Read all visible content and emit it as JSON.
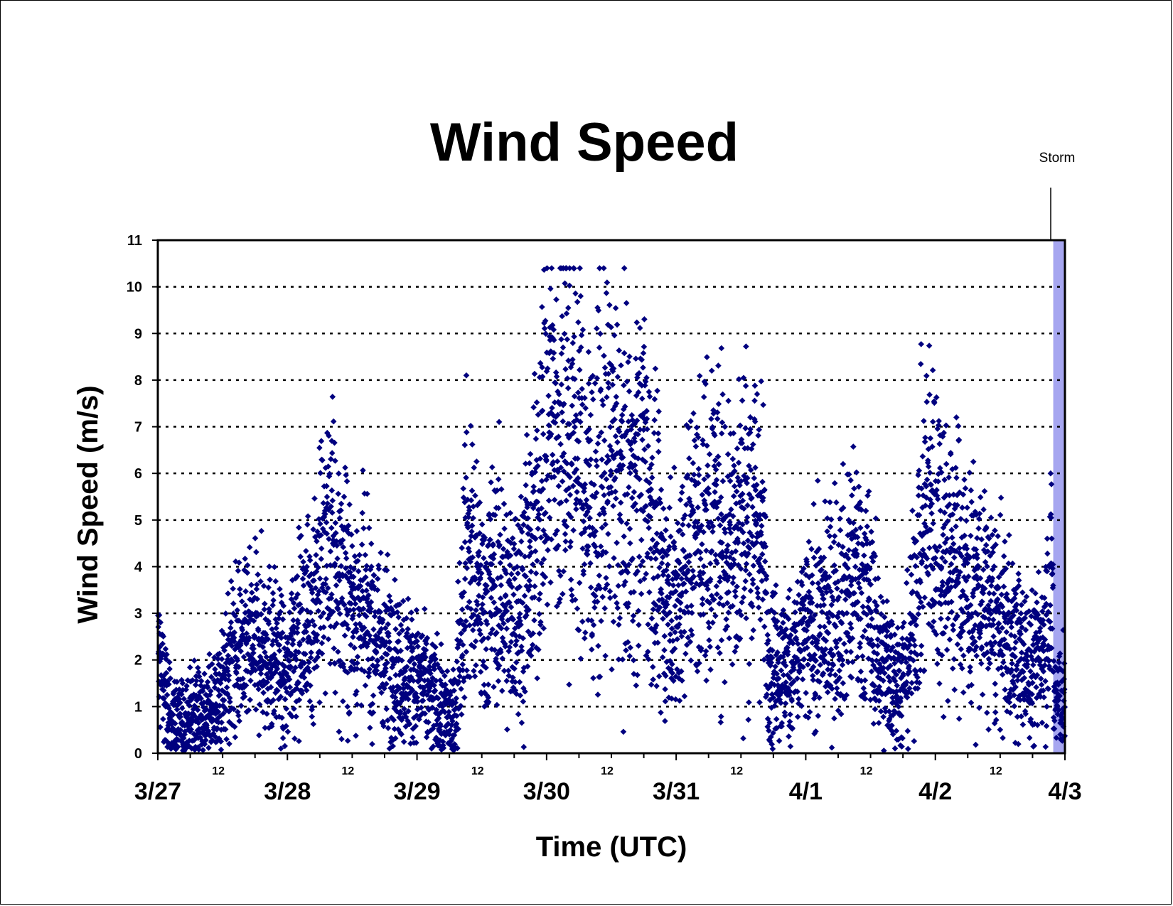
{
  "chart_data": {
    "type": "scatter",
    "title": "Wind Speed",
    "xlabel": "Time (UTC)",
    "ylabel": "Wind Speed (m/s)",
    "ylim": [
      0,
      11
    ],
    "yticks": [
      "0",
      "1",
      "2",
      "3",
      "4",
      "5",
      "6",
      "7",
      "8",
      "9",
      "10",
      "11"
    ],
    "xlim": [
      "3/27 00:00",
      "4/3 00:00"
    ],
    "x_day_labels": [
      "3/27",
      "3/28",
      "3/29",
      "3/30",
      "3/31",
      "4/1",
      "4/2",
      "4/3"
    ],
    "x_noon_label": "12",
    "grid": "horizontal dotted",
    "marker": "diamond",
    "series_color": "#00007F",
    "annotation": {
      "label": "Storm",
      "shaded_from": "4/2 21:50",
      "shaded_to": "4/3 00:00",
      "shade_color": "#A6A6F0"
    },
    "trend_hourly": {
      "note": "approximate central wind speed (m/s) per hour of day, starting 3/27 00:00",
      "3/27": [
        2.1,
        1.6,
        0.8,
        0.7,
        0.6,
        0.7,
        0.8,
        0.9,
        0.9,
        0.8,
        0.9,
        1.1,
        1.3,
        1.9,
        2.1,
        2.2,
        2.1,
        2.2,
        2.3,
        2.4,
        2.3,
        2.2,
        2.0,
        1.8
      ],
      "3/28": [
        1.5,
        2.6,
        2.4,
        2.6,
        2.9,
        3.4,
        3.6,
        4.4,
        4.3,
        3.9,
        3.6,
        3.4,
        3.2,
        3.1,
        3.0,
        2.7,
        2.6,
        2.4,
        2.3,
        2.2,
        2.0,
        1.8,
        1.8,
        1.7
      ],
      "3/29": [
        1.6,
        1.5,
        1.3,
        1.2,
        1.0,
        0.9,
        0.8,
        0.7,
        2.5,
        4.6,
        4.2,
        3.5,
        3.2,
        3.3,
        3.5,
        3.6,
        3.5,
        3.0,
        3.1,
        3.3,
        3.7,
        4.1,
        4.5,
        6.2
      ],
      "3/30": [
        6.8,
        7.3,
        6.5,
        6.8,
        7.1,
        6.8,
        6.5,
        5.6,
        5.3,
        5.2,
        5.6,
        6.0,
        6.1,
        5.8,
        5.6,
        5.5,
        5.6,
        5.8,
        6.5,
        5.2,
        4.3,
        3.7,
        3.4,
        3.3
      ],
      "3/31": [
        3.1,
        4.0,
        4.3,
        4.6,
        4.7,
        4.8,
        5.0,
        5.1,
        5.0,
        4.8,
        4.7,
        4.9,
        5.0,
        5.0,
        5.2,
        4.9,
        4.6,
        2.1,
        2.0,
        1.9,
        1.8,
        1.9,
        2.1,
        2.3
      ],
      "4/1": [
        2.5,
        2.6,
        2.7,
        2.8,
        2.9,
        3.0,
        3.2,
        3.4,
        3.6,
        3.7,
        3.8,
        3.5,
        3.0,
        2.4,
        2.0,
        1.8,
        1.6,
        1.5,
        1.6,
        2.0,
        2.9,
        4.2,
        4.8,
        5.3
      ],
      "4/2": [
        5.1,
        4.8,
        4.4,
        4.1,
        4.2,
        3.9,
        3.7,
        3.5,
        3.4,
        3.2,
        3.1,
        2.9,
        2.7,
        2.6,
        2.4,
        2.2,
        2.0,
        1.9,
        1.8,
        2.0,
        2.6,
        3.3,
        3.9,
        4.3
      ]
    }
  }
}
